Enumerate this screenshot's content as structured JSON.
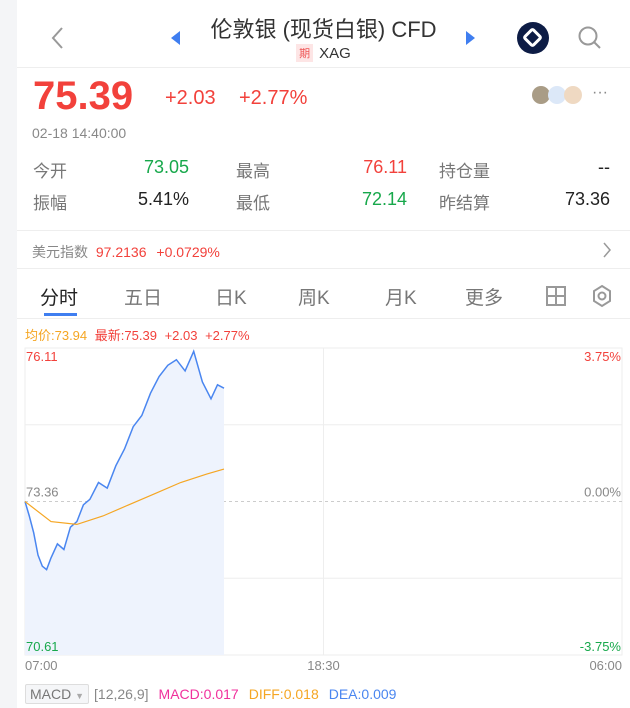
{
  "header": {
    "title": "伦敦银 (现货白银) CFD",
    "badge": "期",
    "symbol": "XAG"
  },
  "quote": {
    "price": "75.39",
    "change": "+2.03",
    "change_pct": "+2.77%",
    "time": "02-18 14:40:00"
  },
  "stats": [
    {
      "label": "今开",
      "value": "73.05",
      "color": "green"
    },
    {
      "label": "最高",
      "value": "76.11",
      "color": "red"
    },
    {
      "label": "持仓量",
      "value": "--",
      "color": "dark"
    },
    {
      "label": "振幅",
      "value": "5.41%",
      "color": "dark"
    },
    {
      "label": "最低",
      "value": "72.14",
      "color": "green"
    },
    {
      "label": "昨结算",
      "value": "73.36",
      "color": "dark"
    }
  ],
  "index": {
    "label": "美元指数",
    "value": "97.2136",
    "change": "+0.0729%"
  },
  "tabs": [
    "分时",
    "五日",
    "日K",
    "周K",
    "月K",
    "更多"
  ],
  "legend": {
    "avg": "均价:73.94",
    "latest": "最新:75.39",
    "change": "+2.03",
    "pct": "+2.77%"
  },
  "colors": {
    "up": "#f2413b",
    "down": "#17a84b",
    "price_line": "#4a86f0",
    "avg_line": "#f5a623",
    "accent": "#3f7ef0"
  },
  "chart_data": {
    "type": "line",
    "y_labels": {
      "top": "76.11",
      "mid": "73.36",
      "bottom": "70.61"
    },
    "pct_labels": {
      "top": "3.75%",
      "mid": "0.00%",
      "bottom": "-3.75%"
    },
    "x_labels": [
      "07:00",
      "18:30",
      "06:00"
    ],
    "ylim": [
      70.61,
      76.11
    ],
    "x_range_minutes": 1380,
    "series": [
      {
        "key": "price",
        "minutes": [
          0,
          10,
          20,
          30,
          40,
          50,
          60,
          75,
          90,
          105,
          120,
          135,
          150,
          170,
          190,
          210,
          230,
          250,
          270,
          290,
          310,
          330,
          350,
          370,
          390,
          410,
          430,
          445,
          460
        ],
        "values": [
          73.36,
          73.1,
          72.8,
          72.4,
          72.2,
          72.14,
          72.35,
          72.6,
          72.5,
          72.9,
          73.0,
          73.3,
          73.4,
          73.7,
          73.6,
          74.0,
          74.3,
          74.7,
          74.9,
          75.3,
          75.6,
          75.8,
          75.9,
          75.7,
          76.05,
          75.5,
          75.2,
          75.45,
          75.39
        ]
      },
      {
        "key": "avg",
        "minutes": [
          0,
          60,
          120,
          180,
          240,
          300,
          360,
          420,
          460
        ],
        "values": [
          73.36,
          73.0,
          72.95,
          73.1,
          73.3,
          73.5,
          73.7,
          73.85,
          73.94
        ]
      }
    ]
  },
  "macd": {
    "selector": "MACD",
    "params": "[12,26,9]",
    "macd": "MACD:0.017",
    "diff": "DIFF:0.018",
    "dea": "DEA:0.009"
  }
}
